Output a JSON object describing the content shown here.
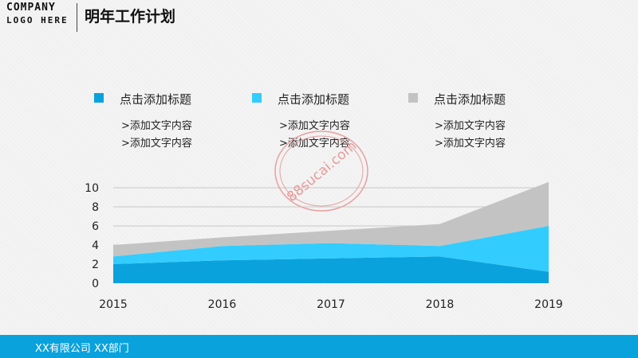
{
  "header": {
    "logo_line1": "COMPANY",
    "logo_line2": "LOGO HERE",
    "title": "明年工作计划"
  },
  "legend": [
    {
      "label": "点击添加标题",
      "color": "#0aa2dc",
      "lines": [
        ">添加文字内容",
        ">添加文字内容"
      ]
    },
    {
      "label": "点击添加标题",
      "color": "#33ccff",
      "lines": [
        ">添加文字内容",
        ">添加文字内容"
      ]
    },
    {
      "label": "点击添加标题",
      "color": "#c3c3c3",
      "lines": [
        ">添加文字内容",
        ">添加文字内容"
      ]
    }
  ],
  "chart_data": {
    "type": "area",
    "stacked": true,
    "categories": [
      "2015",
      "2016",
      "2017",
      "2018",
      "2019"
    ],
    "series": [
      {
        "color": "#0aa2dc",
        "values": [
          2.0,
          2.4,
          2.6,
          2.8,
          1.2
        ]
      },
      {
        "color": "#33ccff",
        "values": [
          0.8,
          1.5,
          1.6,
          1.1,
          4.8
        ]
      },
      {
        "color": "#c3c3c3",
        "values": [
          1.2,
          0.9,
          1.3,
          2.3,
          4.6
        ]
      }
    ],
    "ylim": [
      0,
      10
    ],
    "yticks": [
      0,
      2,
      4,
      6,
      8,
      10
    ],
    "grid": true
  },
  "watermark": {
    "text": "88sucai.com"
  },
  "footer": {
    "text": "XX有限公司  XX部门"
  }
}
